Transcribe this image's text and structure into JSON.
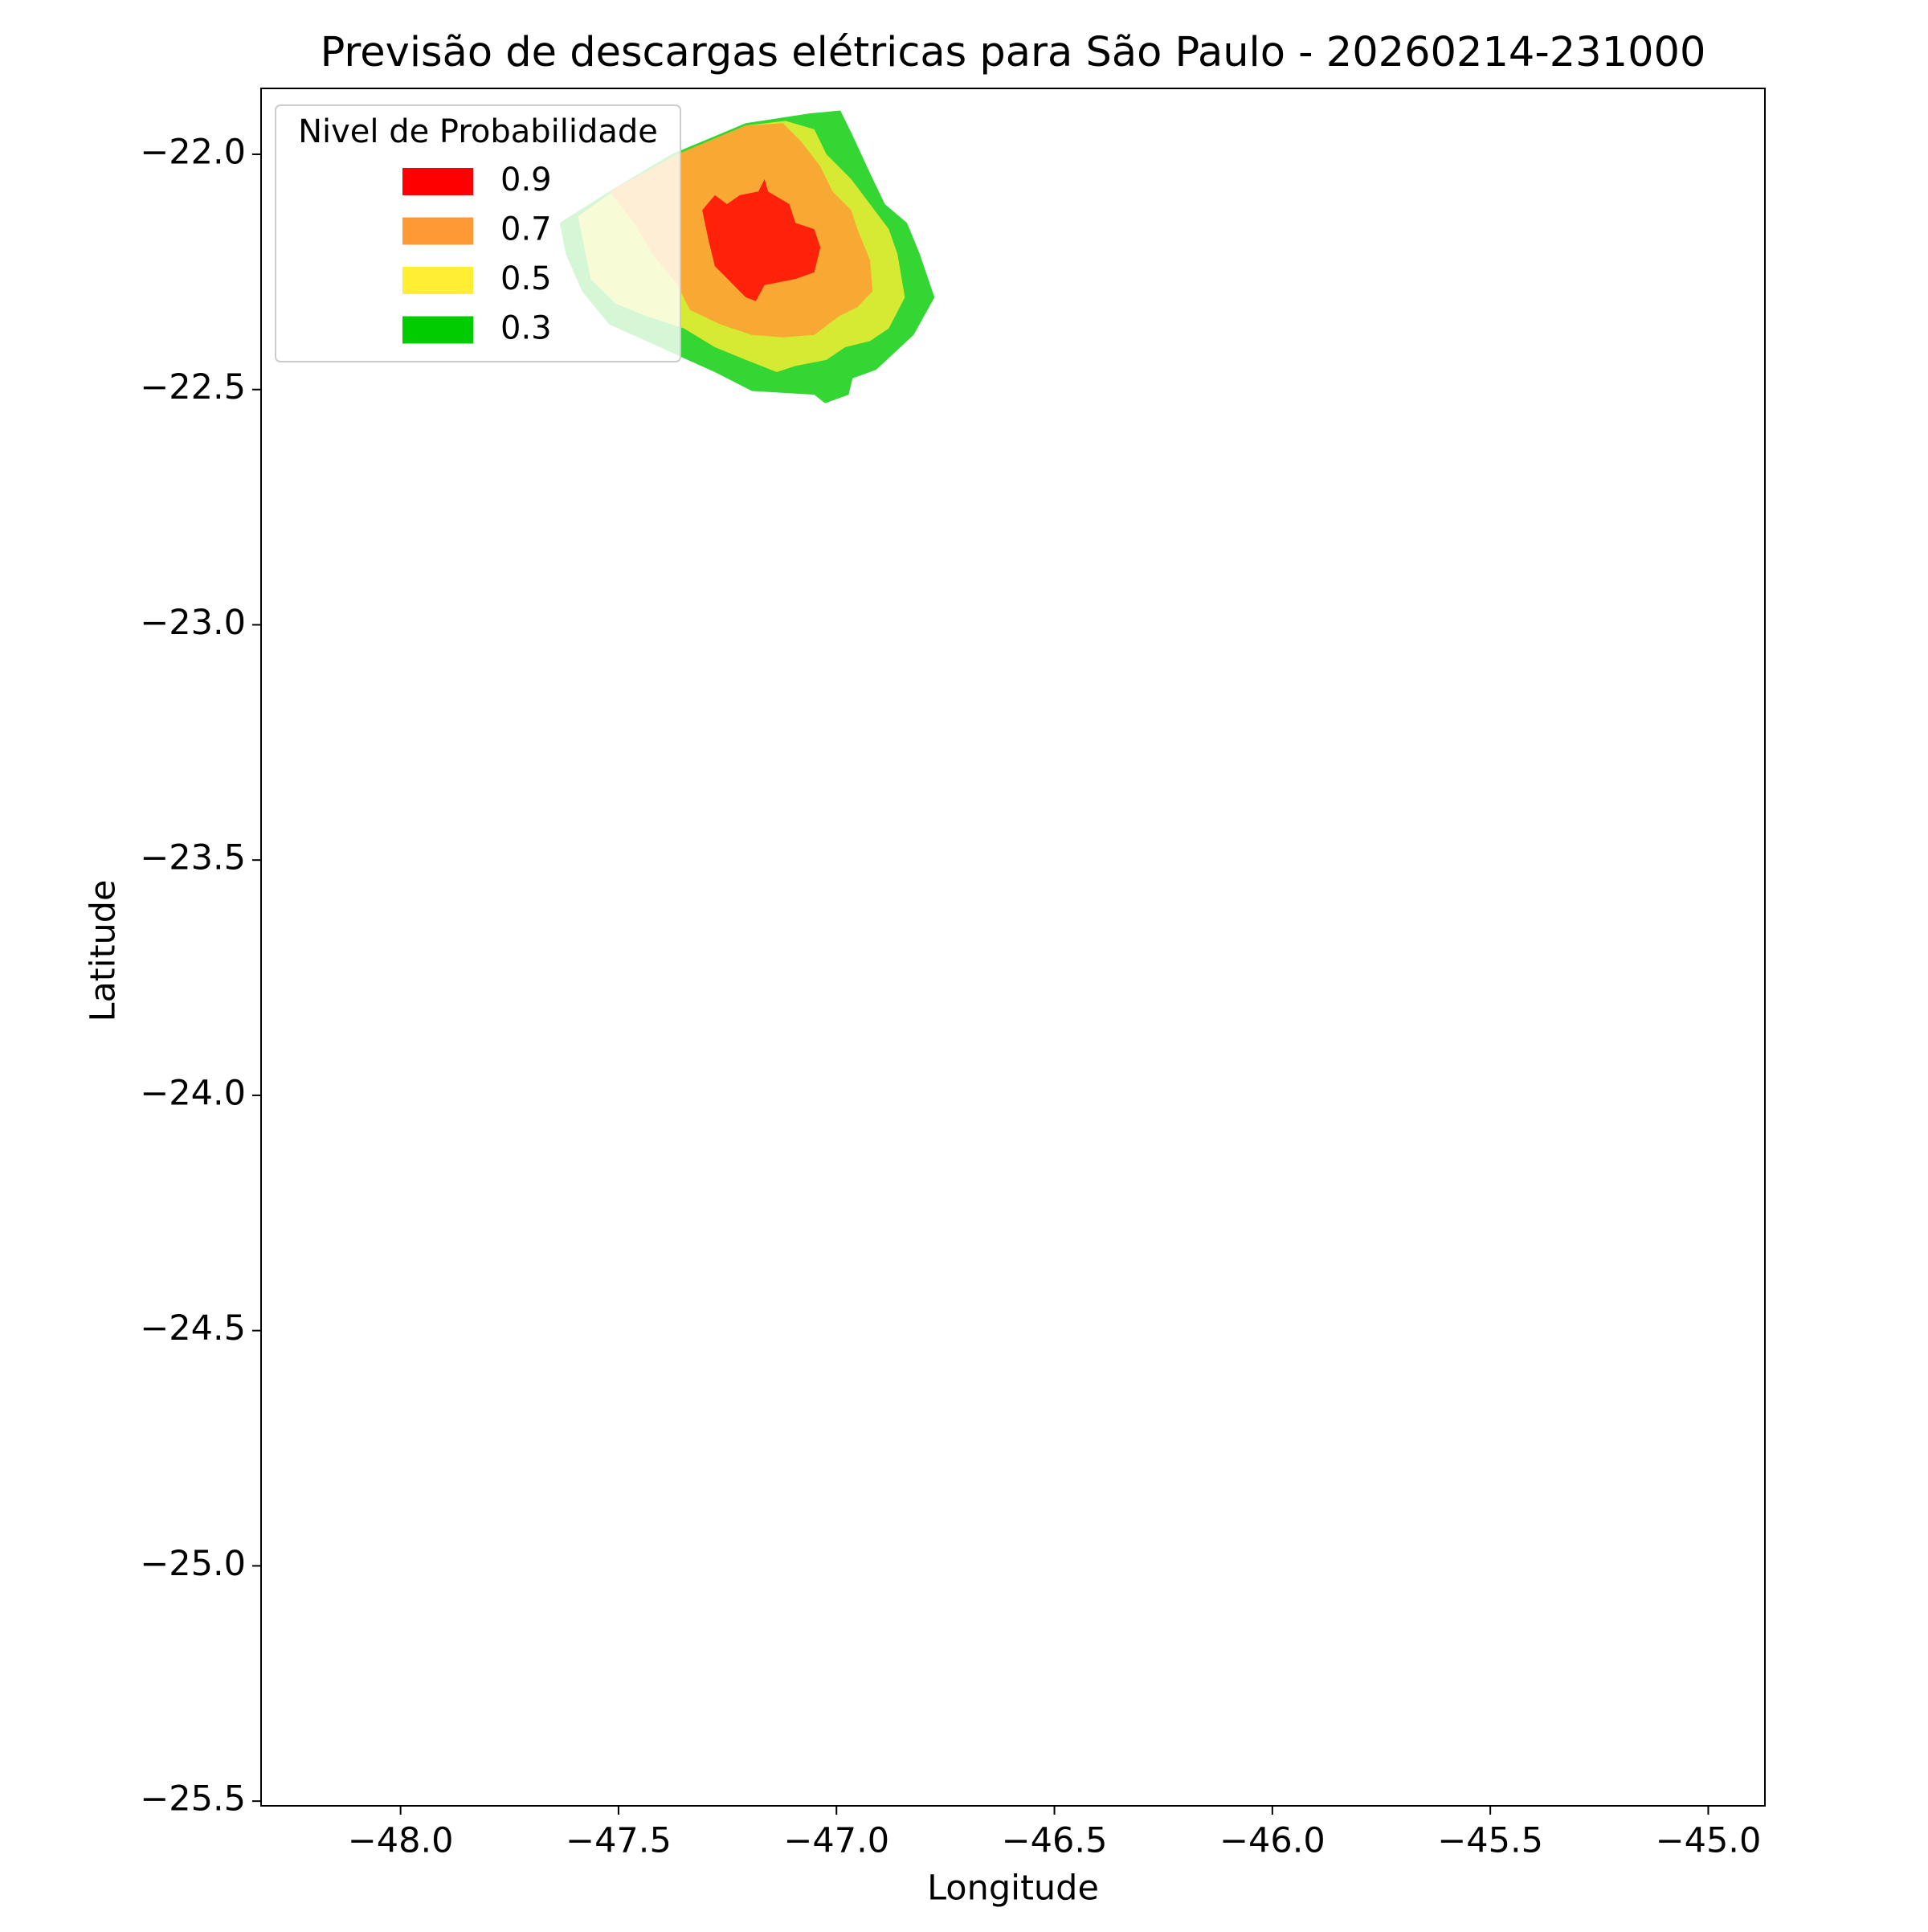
{
  "chart_data": {
    "type": "contourf",
    "title": "Previsão de descargas elétricas para São Paulo - 20260214-231000",
    "x_label": "Longitude",
    "y_label": "Latitude",
    "xlim": [
      -48.32,
      -44.87
    ],
    "ylim": [
      -25.51,
      -21.86
    ],
    "xticks": [
      {
        "value": -48.0,
        "label": "−48.0"
      },
      {
        "value": -47.5,
        "label": "−47.5"
      },
      {
        "value": -47.0,
        "label": "−47.0"
      },
      {
        "value": -46.5,
        "label": "−46.5"
      },
      {
        "value": -46.0,
        "label": "−46.0"
      },
      {
        "value": -45.5,
        "label": "−45.5"
      },
      {
        "value": -45.0,
        "label": "−45.0"
      }
    ],
    "yticks": [
      {
        "value": -22.0,
        "label": "−22.0"
      },
      {
        "value": -22.5,
        "label": "−22.5"
      },
      {
        "value": -23.0,
        "label": "−23.0"
      },
      {
        "value": -23.5,
        "label": "−23.5"
      },
      {
        "value": -24.0,
        "label": "−24.0"
      },
      {
        "value": -24.5,
        "label": "−24.5"
      },
      {
        "value": -25.0,
        "label": "−25.0"
      },
      {
        "value": -25.5,
        "label": "−25.5"
      }
    ],
    "alpha": 0.8,
    "legend_title": "Nivel de Probabilidade",
    "legend_loc": "upper left",
    "series": [
      {
        "name": "0.9",
        "color": "#ff0000",
        "x": [
          -47.308,
          -47.279,
          -47.251,
          -47.222,
          -47.179,
          -47.165,
          -47.157,
          -47.108,
          -47.094,
          -47.051,
          -47.037,
          -47.051,
          -47.094,
          -47.165,
          -47.185,
          -47.208,
          -47.279,
          -47.293
        ],
        "y": [
          -22.119,
          -22.087,
          -22.106,
          -22.087,
          -22.079,
          -22.053,
          -22.079,
          -22.106,
          -22.146,
          -22.159,
          -22.198,
          -22.251,
          -22.265,
          -22.278,
          -22.312,
          -22.304,
          -22.238,
          -22.185
        ]
      },
      {
        "name": "0.7",
        "color": "#ff9933",
        "x": [
          -47.521,
          -47.365,
          -47.208,
          -47.123,
          -47.08,
          -47.037,
          -47.009,
          -46.966,
          -46.952,
          -46.923,
          -46.917,
          -46.952,
          -46.994,
          -47.051,
          -47.123,
          -47.194,
          -47.265,
          -47.336,
          -47.365,
          -47.422,
          -47.464
        ],
        "y": [
          -22.079,
          -22.0,
          -21.939,
          -21.934,
          -21.974,
          -22.026,
          -22.079,
          -22.119,
          -22.159,
          -22.225,
          -22.291,
          -22.325,
          -22.344,
          -22.384,
          -22.389,
          -22.384,
          -22.362,
          -22.331,
          -22.278,
          -22.212,
          -22.146
        ]
      },
      {
        "name": "0.5",
        "color": "#ffee33",
        "x": [
          -47.593,
          -47.493,
          -47.365,
          -47.208,
          -47.117,
          -47.051,
          -47.023,
          -46.966,
          -46.923,
          -46.88,
          -46.86,
          -46.843,
          -46.88,
          -46.923,
          -46.98,
          -47.023,
          -47.094,
          -47.137,
          -47.208,
          -47.279,
          -47.35,
          -47.436,
          -47.507,
          -47.564
        ],
        "y": [
          -22.132,
          -22.066,
          -22.0,
          -21.939,
          -21.929,
          -21.947,
          -22.0,
          -22.053,
          -22.106,
          -22.159,
          -22.212,
          -22.304,
          -22.37,
          -22.397,
          -22.41,
          -22.437,
          -22.45,
          -22.463,
          -22.437,
          -22.41,
          -22.37,
          -22.344,
          -22.317,
          -22.265
        ]
      },
      {
        "name": "0.3",
        "color": "#00cc00",
        "x": [
          -47.635,
          -47.521,
          -47.379,
          -47.208,
          -47.06,
          -46.991,
          -46.963,
          -46.923,
          -46.889,
          -46.838,
          -46.809,
          -46.775,
          -46.823,
          -46.909,
          -46.963,
          -46.972,
          -47.026,
          -47.051,
          -47.194,
          -47.279,
          -47.356,
          -47.436,
          -47.521,
          -47.584,
          -47.621
        ],
        "y": [
          -22.146,
          -22.079,
          -22.0,
          -21.934,
          -21.913,
          -21.907,
          -21.96,
          -22.04,
          -22.106,
          -22.146,
          -22.212,
          -22.304,
          -22.384,
          -22.458,
          -22.476,
          -22.511,
          -22.529,
          -22.511,
          -22.503,
          -22.463,
          -22.431,
          -22.397,
          -22.362,
          -22.291,
          -22.212
        ]
      }
    ]
  }
}
